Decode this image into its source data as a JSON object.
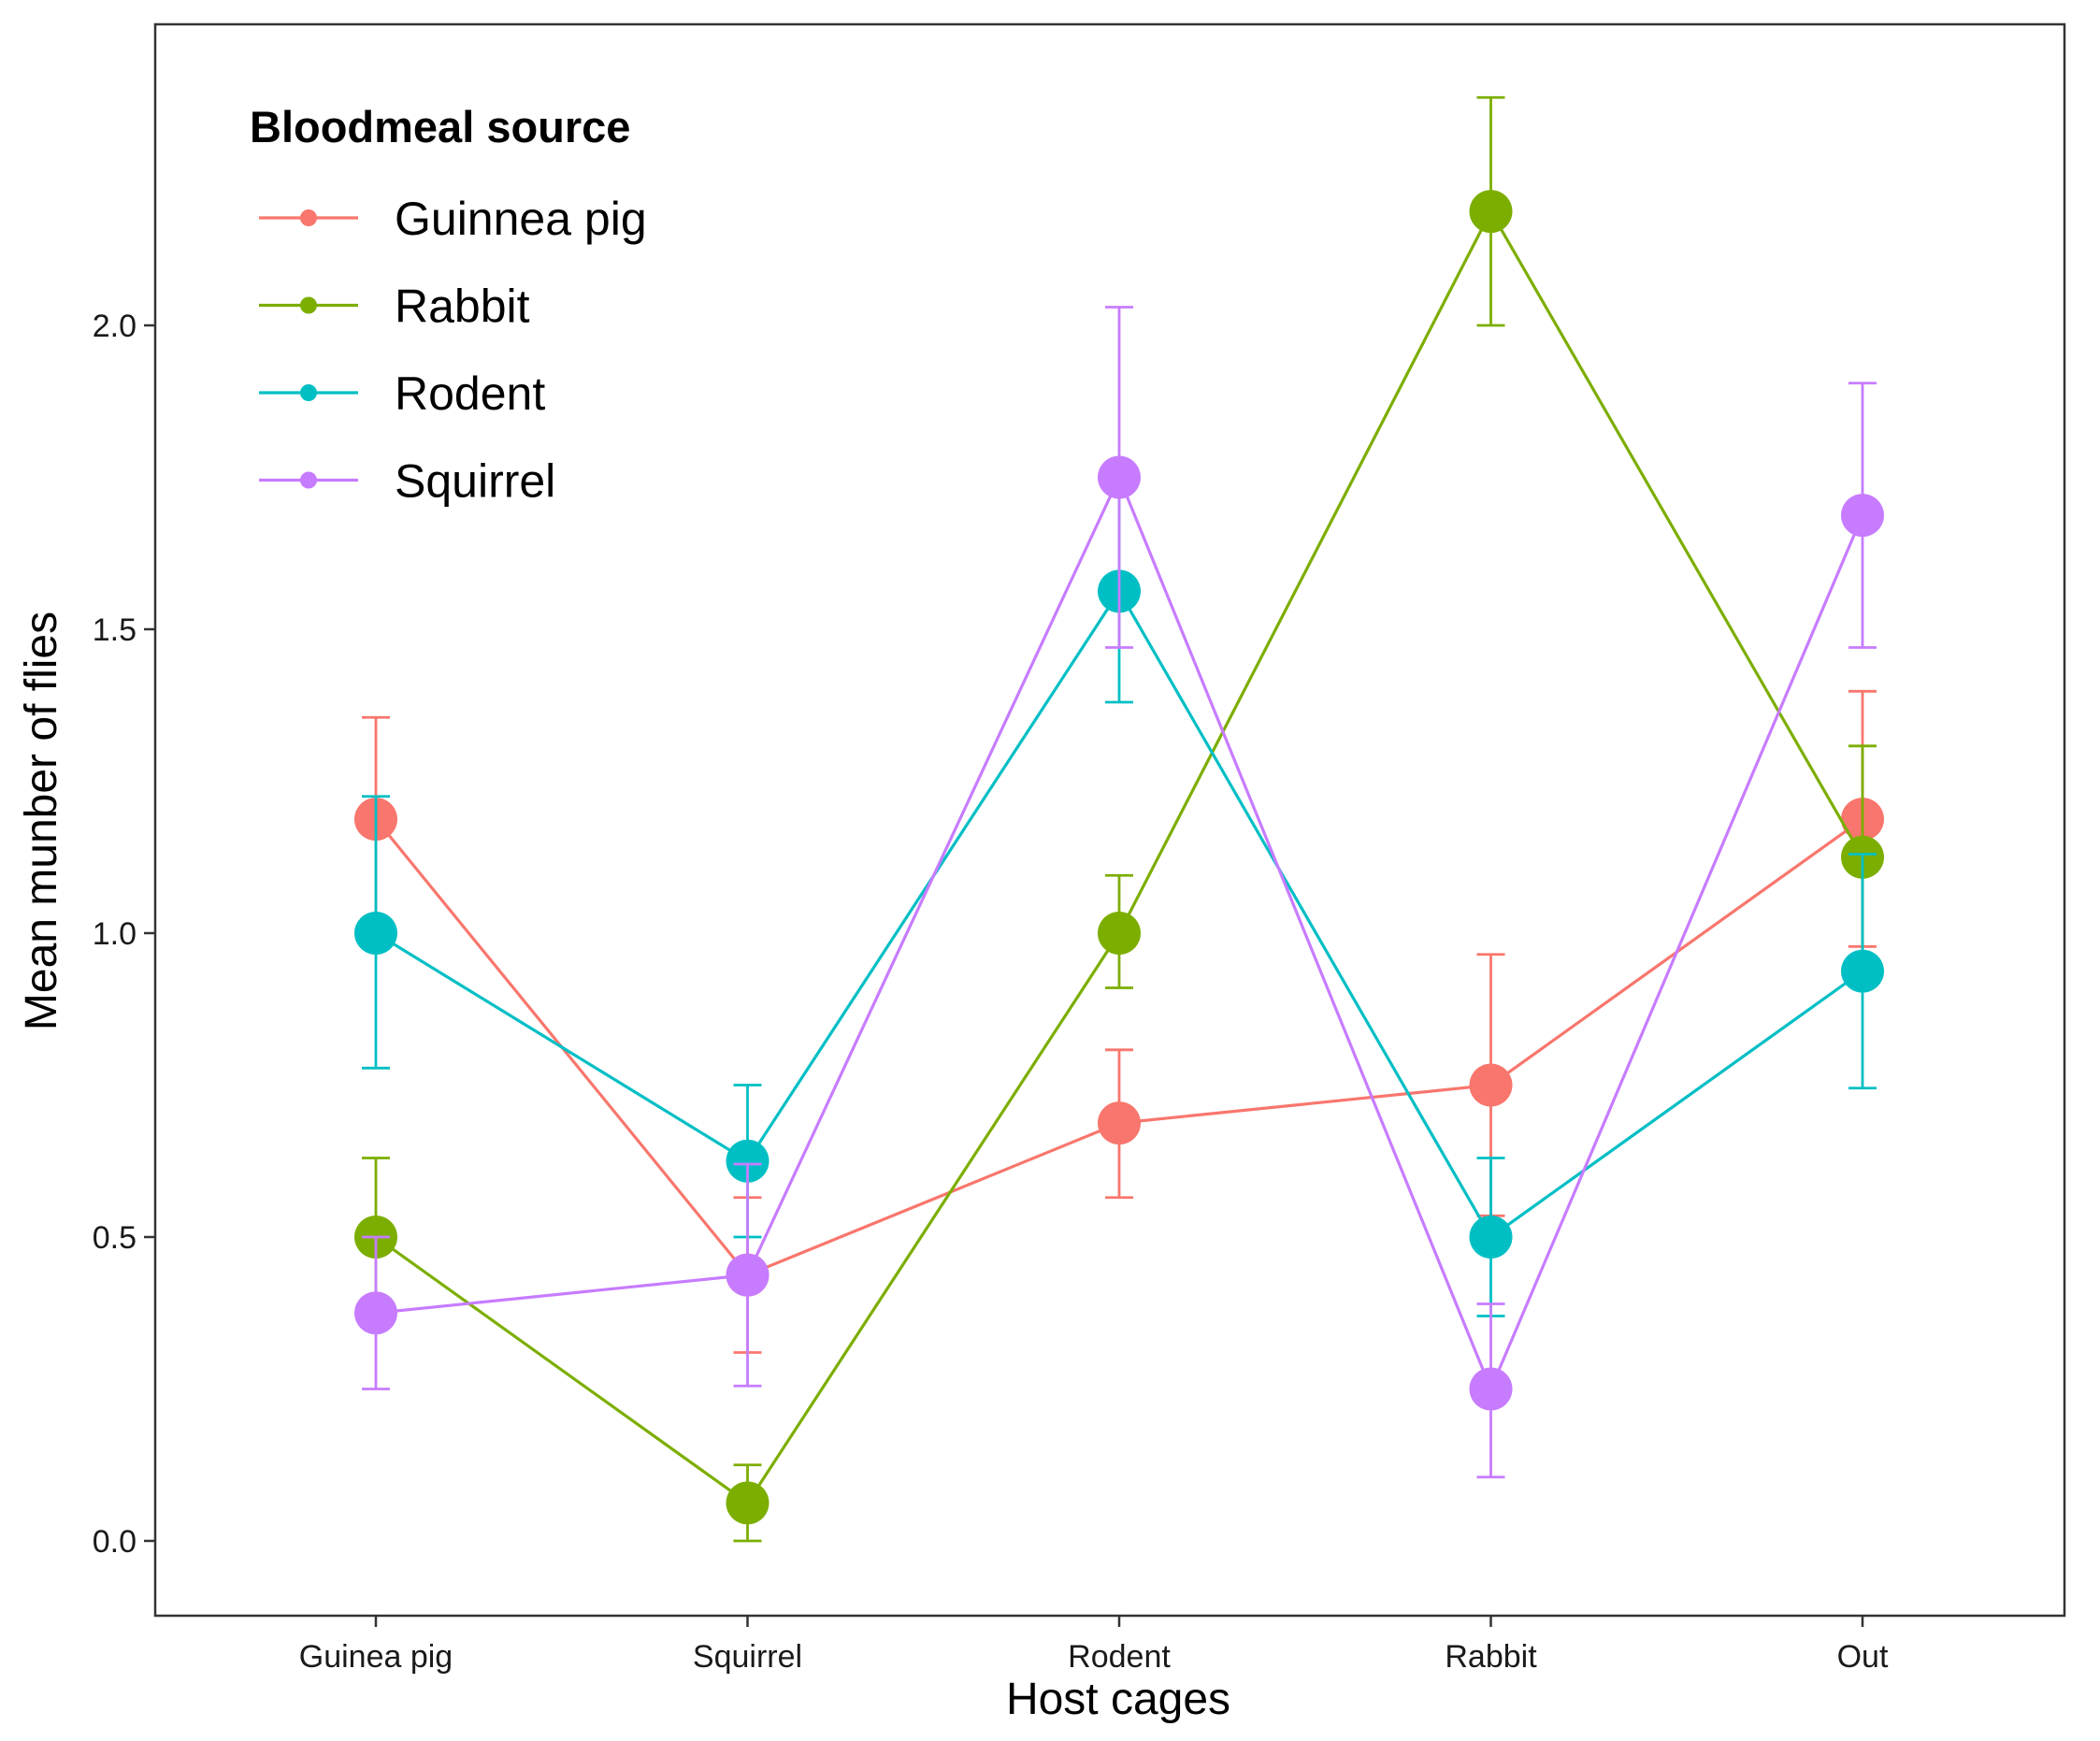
{
  "chart_data": {
    "type": "line",
    "title": "",
    "xlabel": "Host cages",
    "ylabel": "Mean munber of flies",
    "categories": [
      "Guinea pig",
      "Squirrel",
      "Rodent",
      "Rabbit",
      "Out"
    ],
    "ylim": [
      -0.12,
      2.48
    ],
    "yticks": [
      0.0,
      0.5,
      1.0,
      1.5,
      2.0
    ],
    "ytick_labels": [
      "0.0",
      "0.5",
      "1.0",
      "1.5",
      "2.0"
    ],
    "grid": false,
    "legend": {
      "title": "Bloodmeal source",
      "placement": "top-left"
    },
    "series": [
      {
        "name": "Guinnea pig",
        "color": "#F8766D",
        "values": [
          1.1875,
          0.4375,
          0.6875,
          0.75,
          1.1875
        ],
        "err_low": [
          1.025,
          0.31,
          0.565,
          0.535,
          0.978
        ],
        "err_high": [
          1.355,
          0.565,
          0.808,
          0.965,
          1.398
        ]
      },
      {
        "name": "Rabbit",
        "color": "#7CAE00",
        "values": [
          0.5,
          0.0625,
          1.0,
          2.1875,
          1.125
        ],
        "err_low": [
          0.37,
          0.0,
          0.91,
          2.0,
          0.945
        ],
        "err_high": [
          0.63,
          0.125,
          1.095,
          2.375,
          1.308
        ]
      },
      {
        "name": "Rodent",
        "color": "#00BFC4",
        "values": [
          1.0,
          0.625,
          1.5625,
          0.5,
          0.9375
        ],
        "err_low": [
          0.778,
          0.5,
          1.38,
          0.37,
          0.745
        ],
        "err_high": [
          1.225,
          0.75,
          1.745,
          0.63,
          1.13
        ]
      },
      {
        "name": "Squirrel",
        "color": "#C77CFF",
        "values": [
          0.375,
          0.4375,
          1.75,
          0.25,
          1.6875
        ],
        "err_low": [
          0.25,
          0.255,
          1.47,
          0.105,
          1.47
        ],
        "err_high": [
          0.5,
          0.62,
          2.03,
          0.39,
          1.905
        ]
      }
    ]
  }
}
